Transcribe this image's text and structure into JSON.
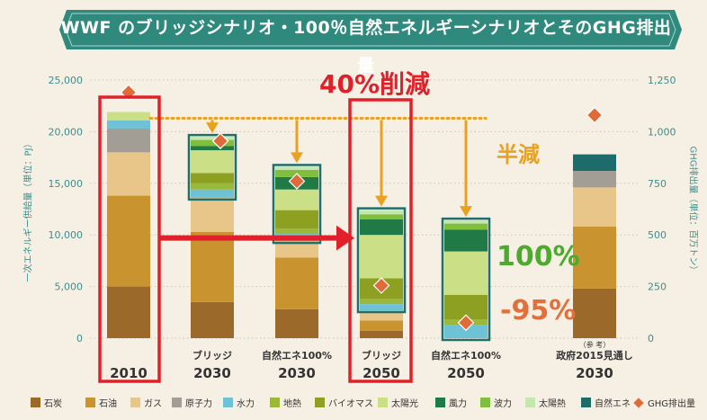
{
  "header": {
    "title": "WWF のブリッジシナリオ・100％自然エネルギーシナリオとそのGHG排出量"
  },
  "callouts": {
    "reduction": "40%削減",
    "half": "半減",
    "renewable_100": "100%",
    "minus_95": "-95%"
  },
  "colors": {
    "banner": "#2f8a7d",
    "highlight_red": "#e0202a",
    "arrow_orange": "#e9a21f",
    "box_border": "#1f6f6b",
    "axis_text": "#3a8f8e"
  },
  "chart_data": {
    "type": "bar",
    "stacked": true,
    "categories": [
      {
        "top": "",
        "bottom": "2010"
      },
      {
        "top": "ブリッジ",
        "bottom": "2030"
      },
      {
        "top": "自然エネ100%",
        "bottom": "2030"
      },
      {
        "top": "ブリッジ",
        "bottom": "2050"
      },
      {
        "top": "自然エネ100%",
        "bottom": "2050"
      },
      {
        "note": "（参 考）",
        "top": "政府2015見通し",
        "bottom": "2030"
      }
    ],
    "ylabel_left": "一次エネルギー供給量（単位：PJ）",
    "ylabel_right": "GHG排出量（単位：百万トン）",
    "ylim_left": [
      0,
      25000
    ],
    "ylim_right": [
      0,
      1250
    ],
    "yticks_left": [
      "0",
      "5,000",
      "10,000",
      "15,000",
      "20,000",
      "25,000"
    ],
    "yticks_right": [
      "0",
      "250",
      "500",
      "750",
      "1,000",
      "1,250"
    ],
    "series": [
      {
        "name": "石炭",
        "color": "#9b6a2a",
        "values": [
          5000,
          3500,
          2800,
          700,
          0,
          4800
        ]
      },
      {
        "name": "石油",
        "color": "#c9942f",
        "values": [
          8800,
          6800,
          5000,
          1000,
          0,
          6000
        ]
      },
      {
        "name": "ガス",
        "color": "#e8c68a",
        "values": [
          4200,
          3300,
          1600,
          1000,
          0,
          3800
        ]
      },
      {
        "name": "原子力",
        "color": "#a29d95",
        "values": [
          2300,
          0,
          0,
          0,
          0,
          1600
        ]
      },
      {
        "name": "水力",
        "color": "#6fc1d6",
        "values": [
          800,
          800,
          700,
          600,
          1300,
          0
        ]
      },
      {
        "name": "地熱",
        "color": "#9ab93b",
        "values": [
          0,
          600,
          500,
          500,
          500,
          0
        ]
      },
      {
        "name": "バイオマス",
        "color": "#8ea022",
        "values": [
          0,
          1000,
          1800,
          2000,
          2400,
          0
        ]
      },
      {
        "name": "太陽光",
        "color": "#cbdf86",
        "values": [
          800,
          2200,
          2000,
          4200,
          4200,
          0
        ]
      },
      {
        "name": "風力",
        "color": "#1f7a45",
        "values": [
          0,
          400,
          1200,
          1500,
          2100,
          0
        ]
      },
      {
        "name": "波力",
        "color": "#7fbf3d",
        "values": [
          0,
          600,
          700,
          500,
          600,
          0
        ]
      },
      {
        "name": "太陽熱",
        "color": "#c6e6b0",
        "values": [
          0,
          300,
          300,
          400,
          300,
          0
        ]
      },
      {
        "name": "自然エネ",
        "color": "#1e6b6c",
        "values": [
          0,
          0,
          0,
          0,
          0,
          1600
        ]
      }
    ],
    "ghg_series": {
      "name": "GHG排出量",
      "color": "#e06a3a",
      "values": [
        1190,
        955,
        760,
        255,
        75,
        1080
      ]
    },
    "reference_line_pj": 21300,
    "grid": "dotted horizontal",
    "legend_position": "bottom"
  }
}
